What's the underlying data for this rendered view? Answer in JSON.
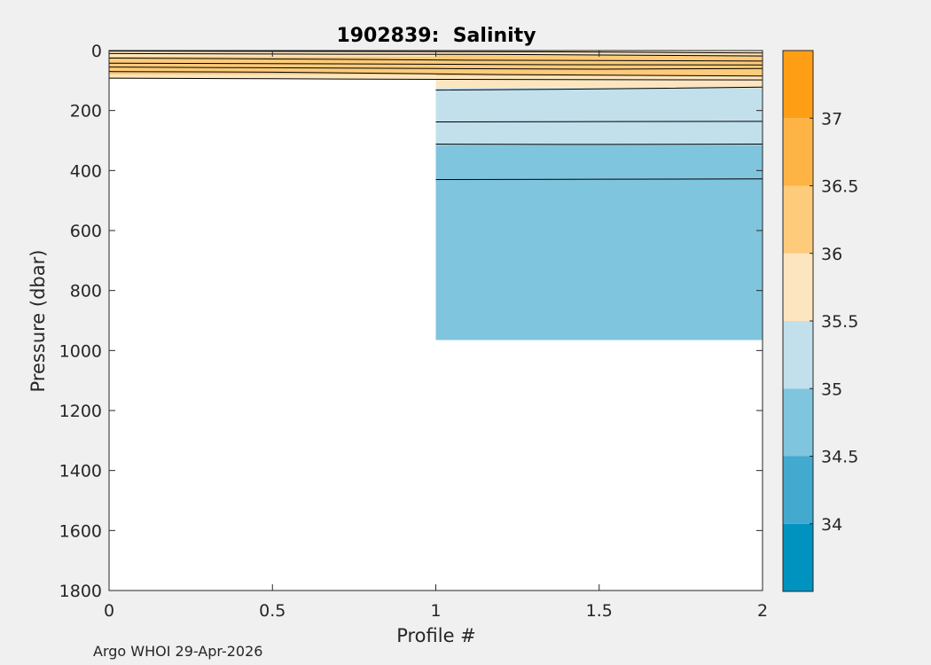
{
  "footer": "Argo WHOI 29-Apr-2026",
  "chart_data": {
    "type": "contour",
    "title": "1902839:  Salinity",
    "xlabel": "Profile #",
    "ylabel": "Pressure (dbar)",
    "xlim": [
      0,
      2
    ],
    "ylim": [
      0,
      1800
    ],
    "y_reversed": true,
    "xticks": [
      0,
      0.5,
      1,
      1.5,
      2
    ],
    "xtick_labels": [
      "0",
      "0.5",
      "1",
      "1.5",
      "2"
    ],
    "yticks": [
      0,
      200,
      400,
      600,
      800,
      1000,
      1200,
      1400,
      1600,
      1800
    ],
    "ytick_labels": [
      "0",
      "200",
      "400",
      "600",
      "800",
      "1000",
      "1200",
      "1400",
      "1600",
      "1800"
    ],
    "grid": false,
    "profiles": [
      {
        "profile_range": [
          0,
          1
        ],
        "max_pressure": 95,
        "layers": [
          {
            "from": 0,
            "to": 20,
            "level": "35.5-36"
          },
          {
            "from": 20,
            "to": 80,
            "level": "36-36.5"
          },
          {
            "from": 80,
            "to": 95,
            "level": "35.5-36"
          }
        ]
      },
      {
        "profile_range": [
          1,
          2
        ],
        "max_pressure": 965,
        "layers": [
          {
            "from": 0,
            "to": 15,
            "level": "35.5-36"
          },
          {
            "from": 15,
            "to": 85,
            "level": "36-36.5"
          },
          {
            "from": 85,
            "to": 125,
            "level": "35.5-36"
          },
          {
            "from": 125,
            "to": 315,
            "level": "35-35.5"
          },
          {
            "from": 315,
            "to": 965,
            "level": "34.5-35"
          }
        ]
      }
    ],
    "contour_lines": [
      {
        "x": [
          0,
          0.7,
          1.3,
          2
        ],
        "y": [
          2,
          3,
          4,
          8
        ]
      },
      {
        "x": [
          0,
          0.6,
          1.2,
          2
        ],
        "y": [
          10,
          12,
          13,
          18
        ]
      },
      {
        "x": [
          0,
          0.5,
          1.1,
          2
        ],
        "y": [
          25,
          28,
          32,
          35
        ]
      },
      {
        "x": [
          0,
          0.6,
          1.3,
          2
        ],
        "y": [
          42,
          44,
          47,
          48
        ]
      },
      {
        "x": [
          0,
          0.4,
          1.0,
          1.5,
          2
        ],
        "y": [
          55,
          57,
          60,
          62,
          60
        ]
      },
      {
        "x": [
          0,
          0.5,
          1.2,
          2
        ],
        "y": [
          70,
          72,
          80,
          85
        ]
      },
      {
        "x": [
          0,
          0.5,
          1.0,
          2
        ],
        "y": [
          92,
          94,
          96,
          98
        ]
      },
      {
        "x": [
          1,
          1.5,
          2
        ],
        "y": [
          132,
          128,
          122
        ]
      },
      {
        "x": [
          1,
          1.5,
          2
        ],
        "y": [
          238,
          237,
          236
        ]
      },
      {
        "x": [
          1,
          1.5,
          2
        ],
        "y": [
          312,
          313,
          312
        ]
      },
      {
        "x": [
          1,
          1.5,
          2
        ],
        "y": [
          430,
          429,
          428
        ]
      }
    ],
    "colorbar": {
      "levels": [
        33.5,
        34,
        34.5,
        35,
        35.5,
        36,
        36.5,
        37,
        37.5
      ],
      "colors": {
        "33.5-34": "#0093c0",
        "34-34.5": "#43a9cf",
        "34.5-35": "#80c5de",
        "35-35.5": "#c1e0eb",
        "35.5-36": "#fde6bf",
        "36-36.5": "#fdcb7a",
        "36.5-37": "#fdb444",
        "37-37.5": "#fd9e14"
      },
      "tick_labels": [
        "34",
        "34.5",
        "35",
        "35.5",
        "36",
        "36.5",
        "37"
      ]
    }
  }
}
